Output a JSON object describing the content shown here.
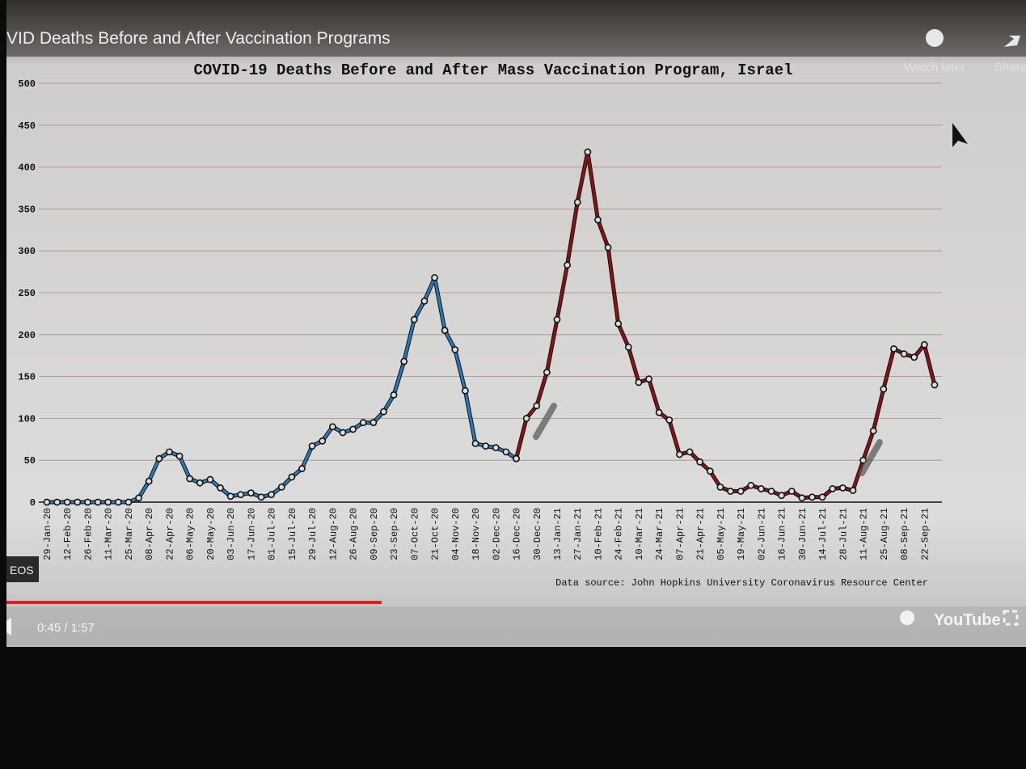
{
  "ui": {
    "video_title": "VID Deaths Before and After Vaccination Programs",
    "watch_later": "Watch later",
    "share": "Share",
    "more_videos": "EOS",
    "time": "0:45 / 1:57",
    "brand": "YouTube"
  },
  "chart_data": {
    "type": "line",
    "title": "COVID-19 Deaths Before and After Mass Vaccination Program, Israel",
    "source": "Data source: John Hopkins University Coronavirus Resource Center",
    "categories": [
      "29-Jan-20",
      null,
      "12-Feb-20",
      null,
      "26-Feb-20",
      null,
      "11-Mar-20",
      null,
      "25-Mar-20",
      null,
      "08-Apr-20",
      null,
      "22-Apr-20",
      null,
      "06-May-20",
      null,
      "20-May-20",
      null,
      "03-Jun-20",
      null,
      "17-Jun-20",
      null,
      "01-Jul-20",
      null,
      "15-Jul-20",
      null,
      "29-Jul-20",
      null,
      "12-Aug-20",
      null,
      "26-Aug-20",
      null,
      "09-Sep-20",
      null,
      "23-Sep-20",
      null,
      "07-Oct-20",
      null,
      "21-Oct-20",
      null,
      "04-Nov-20",
      null,
      "18-Nov-20",
      null,
      "02-Dec-20",
      null,
      "16-Dec-20",
      null,
      "30-Dec-20",
      null,
      "13-Jan-21",
      null,
      "27-Jan-21",
      null,
      "10-Feb-21",
      null,
      "24-Feb-21",
      null,
      "10-Mar-21",
      null,
      "24-Mar-21",
      null,
      "07-Apr-21",
      null,
      "21-Apr-21",
      null,
      "05-May-21",
      null,
      "19-May-21",
      null,
      "02-Jun-21",
      null,
      "16-Jun-21",
      null,
      "30-Jun-21",
      null,
      "14-Jul-21",
      null,
      "28-Jul-21",
      null,
      "11-Aug-21",
      null,
      "25-Aug-21",
      null,
      "08-Sep-21",
      null,
      "22-Sep-21",
      null
    ],
    "series": [
      {
        "color": "#2b7bb9",
        "values": [
          0,
          0,
          0,
          0,
          0,
          0,
          0,
          0,
          0,
          5,
          25,
          52,
          60,
          55,
          28,
          23,
          27,
          17,
          7,
          9,
          11,
          6,
          9,
          18,
          30,
          40,
          67,
          73,
          90,
          83,
          87,
          95,
          95,
          108,
          128,
          168,
          218,
          240,
          268,
          205,
          182,
          133,
          70,
          67,
          65,
          60,
          52,
          null,
          null,
          null,
          null,
          null,
          null,
          null,
          null,
          null,
          null,
          null,
          null,
          null,
          null,
          null,
          null,
          null,
          null,
          null,
          null,
          null,
          null,
          null,
          null,
          null,
          null,
          null,
          null,
          null,
          null,
          null,
          null,
          null,
          null,
          null,
          null,
          null,
          null,
          null,
          null,
          null
        ]
      },
      {
        "color": "#8e1212",
        "values": [
          null,
          null,
          null,
          null,
          null,
          null,
          null,
          null,
          null,
          null,
          null,
          null,
          null,
          null,
          null,
          null,
          null,
          null,
          null,
          null,
          null,
          null,
          null,
          null,
          null,
          null,
          null,
          null,
          null,
          null,
          null,
          null,
          null,
          null,
          null,
          null,
          null,
          null,
          null,
          null,
          null,
          null,
          null,
          null,
          null,
          null,
          52,
          100,
          115,
          155,
          218,
          283,
          358,
          418,
          337,
          304,
          213,
          185,
          143,
          147,
          107,
          98,
          57,
          60,
          48,
          37,
          18,
          13,
          13,
          20,
          16,
          13,
          8,
          13,
          5,
          6,
          6,
          16,
          17,
          14,
          50,
          85,
          135,
          183,
          177,
          173,
          188,
          140
        ]
      }
    ],
    "ylim": [
      0,
      500
    ],
    "yticks": [
      0,
      50,
      100,
      150,
      200,
      250,
      300,
      350,
      400,
      450,
      500
    ],
    "grid": true
  }
}
